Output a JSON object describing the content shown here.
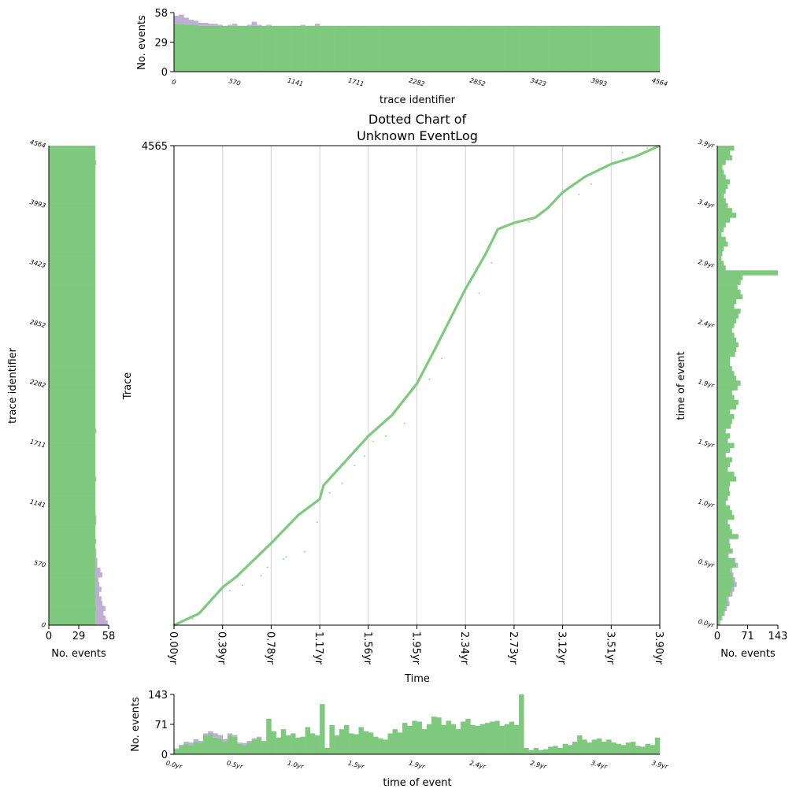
{
  "chart_data": [
    {
      "type": "scatter",
      "name": "main-dotted",
      "title": [
        "Dotted Chart of",
        "Unknown EventLog"
      ],
      "xlabel": "Time",
      "ylabel": "Trace",
      "xlim": [
        0,
        3.9
      ],
      "ylim": [
        0,
        4565
      ],
      "xticks": [
        "0.00yr",
        "0.39yr",
        "0.78yr",
        "1.17yr",
        "1.56yr",
        "1.95yr",
        "2.34yr",
        "2.73yr",
        "3.12yr",
        "3.51yr",
        "3.90yr"
      ],
      "yticks": [
        "4565"
      ],
      "grid": "vertical",
      "color": "#7fc97f",
      "curve": [
        [
          0,
          0
        ],
        [
          0.2,
          110
        ],
        [
          0.39,
          360
        ],
        [
          0.5,
          460
        ],
        [
          0.78,
          780
        ],
        [
          1.0,
          1050
        ],
        [
          1.17,
          1200
        ],
        [
          1.2,
          1330
        ],
        [
          1.56,
          1800
        ],
        [
          1.75,
          2000
        ],
        [
          1.95,
          2300
        ],
        [
          2.1,
          2640
        ],
        [
          2.34,
          3200
        ],
        [
          2.5,
          3530
        ],
        [
          2.55,
          3650
        ],
        [
          2.6,
          3770
        ],
        [
          2.73,
          3830
        ],
        [
          2.9,
          3880
        ],
        [
          3.0,
          3970
        ],
        [
          3.12,
          4120
        ],
        [
          3.3,
          4270
        ],
        [
          3.51,
          4390
        ],
        [
          3.7,
          4460
        ],
        [
          3.9,
          4565
        ]
      ],
      "outliers": [
        [
          0.15,
          60
        ],
        [
          0.2,
          120
        ],
        [
          0.25,
          180
        ],
        [
          0.3,
          250
        ],
        [
          0.45,
          330
        ],
        [
          0.55,
          380
        ],
        [
          0.7,
          470
        ],
        [
          0.75,
          550
        ],
        [
          0.88,
          630
        ],
        [
          0.9,
          650
        ],
        [
          1.05,
          700
        ],
        [
          1.15,
          980
        ],
        [
          1.25,
          1260
        ],
        [
          1.35,
          1350
        ],
        [
          1.45,
          1520
        ],
        [
          1.53,
          1610
        ],
        [
          1.6,
          1750
        ],
        [
          1.7,
          1800
        ],
        [
          1.85,
          1920
        ],
        [
          2.05,
          2340
        ],
        [
          2.15,
          2540
        ],
        [
          2.45,
          3160
        ],
        [
          2.55,
          3450
        ],
        [
          2.85,
          3840
        ],
        [
          3.25,
          4100
        ],
        [
          3.35,
          4200
        ],
        [
          3.6,
          4500
        ],
        [
          3.8,
          4540
        ]
      ]
    },
    {
      "type": "bar",
      "name": "top-histogram",
      "xlabel": "trace identifier",
      "ylabel": "No. events",
      "xlim": [
        0,
        4564
      ],
      "ylim": [
        0,
        58
      ],
      "xticks": [
        "0",
        "570",
        "1141",
        "1711",
        "2282",
        "2852",
        "3423",
        "3993",
        "4564"
      ],
      "yticks": [
        "0",
        "29",
        "58"
      ],
      "series": [
        {
          "name": "main",
          "color": "#7fc97f",
          "values": [
            47,
            47,
            46,
            46,
            46,
            45,
            45,
            45,
            45,
            45,
            45,
            45,
            45,
            45,
            45,
            45,
            45,
            45,
            45,
            45,
            45,
            45,
            45,
            45,
            45,
            45,
            45,
            45,
            45,
            45,
            45,
            45,
            45,
            45,
            45,
            45,
            45,
            45,
            45,
            45,
            45,
            45,
            45,
            45,
            45,
            45,
            45,
            45,
            45,
            45,
            45,
            45,
            45,
            45,
            45,
            45,
            45,
            45,
            45,
            45,
            45,
            45,
            45,
            45,
            45,
            45,
            45,
            45,
            45,
            45,
            45,
            45,
            45,
            45,
            45,
            45,
            45,
            45,
            45,
            45,
            45,
            45,
            45,
            45,
            45,
            45,
            45,
            45,
            45,
            45,
            45,
            45,
            45,
            45,
            45,
            45,
            45,
            45,
            45,
            45
          ]
        },
        {
          "name": "secondary",
          "color": "#beaed4",
          "values": [
            8,
            9,
            7,
            5,
            4,
            3,
            3,
            2,
            2,
            1,
            0,
            1,
            2,
            0,
            0,
            1,
            4,
            1,
            0,
            1,
            0,
            0,
            0,
            0,
            0,
            0,
            1,
            0,
            0,
            2,
            0,
            0,
            0,
            0,
            0,
            0,
            0,
            0,
            0,
            0,
            0,
            0,
            0,
            0,
            0,
            0,
            0,
            0,
            0,
            0,
            0,
            0,
            0,
            0,
            0,
            0,
            0,
            0,
            0,
            0,
            0,
            0,
            0,
            0,
            0,
            0,
            0,
            0,
            0,
            0,
            0,
            0,
            0,
            0,
            0,
            0,
            0,
            0,
            0,
            0,
            0,
            0,
            0,
            0,
            0,
            0,
            0,
            0,
            0,
            0,
            0,
            0,
            0,
            0,
            0,
            0,
            0,
            0,
            0,
            0
          ]
        }
      ]
    },
    {
      "type": "bar",
      "name": "left-histogram",
      "orientation": "horizontal",
      "xlabel": "No. events",
      "ylabel": "trace identifier",
      "xlim": [
        0,
        58
      ],
      "ylim": [
        0,
        4564
      ],
      "xticks": [
        "0",
        "29",
        "58"
      ],
      "yticks": [
        "0",
        "570",
        "1141",
        "1711",
        "2282",
        "2852",
        "3423",
        "3993",
        "4564"
      ],
      "series": [
        {
          "name": "main",
          "color": "#7fc97f",
          "values": [
            45,
            45,
            45,
            46,
            45,
            45,
            45,
            45,
            45,
            45,
            45,
            45,
            45,
            45,
            45,
            45,
            45,
            45,
            45,
            45,
            45,
            45,
            45,
            45,
            45,
            45,
            45,
            45,
            45,
            45,
            45,
            45,
            45,
            45,
            45,
            45,
            45,
            45,
            45,
            45,
            45,
            45,
            45,
            45,
            45,
            45,
            45,
            45,
            45,
            45,
            45,
            45,
            45,
            45,
            45,
            45,
            45,
            45,
            45,
            45,
            45,
            45,
            45,
            45,
            45,
            45,
            45,
            45,
            45,
            45,
            45,
            45,
            45,
            45,
            45,
            45,
            45,
            45,
            45,
            45,
            45,
            45,
            45,
            45,
            45,
            45,
            45,
            45,
            45,
            45,
            45,
            45,
            45,
            45,
            45,
            45,
            45,
            45,
            45,
            45
          ]
        },
        {
          "name": "secondary",
          "color": "#beaed4",
          "values": [
            12,
            10,
            8,
            9,
            7,
            6,
            4,
            6,
            4,
            3,
            7,
            5,
            2,
            2,
            1,
            1,
            0,
            1,
            0,
            0,
            0,
            1,
            1,
            0,
            0,
            0,
            0,
            0,
            0,
            0,
            1,
            0,
            0,
            0,
            0,
            0,
            0,
            0,
            0,
            0,
            1,
            0,
            0,
            0,
            0,
            0,
            0,
            0,
            0,
            0,
            0,
            0,
            0,
            0,
            0,
            0,
            0,
            0,
            0,
            0,
            0,
            0,
            0,
            0,
            0,
            0,
            0,
            0,
            0,
            0,
            0,
            0,
            0,
            0,
            0,
            0,
            0,
            0,
            0,
            0,
            0,
            0,
            0,
            0,
            0,
            0,
            0,
            0,
            0,
            0,
            0,
            0,
            0,
            0,
            0,
            0,
            1,
            0,
            0,
            0
          ]
        }
      ]
    },
    {
      "type": "bar",
      "name": "right-histogram",
      "orientation": "horizontal",
      "xlabel": "No. events",
      "ylabel": "time of event",
      "xlim": [
        0,
        143
      ],
      "ylim": [
        0,
        3.9
      ],
      "xticks": [
        "0",
        "71",
        "143"
      ],
      "yticks": [
        "0.0yr",
        "0.5yr",
        "1.0yr",
        "1.5yr",
        "1.9yr",
        "2.4yr",
        "2.9yr",
        "3.4yr",
        "3.9yr"
      ],
      "series": [
        {
          "name": "main",
          "color": "#7fc97f",
          "values": [
            5,
            10,
            15,
            20,
            25,
            22,
            30,
            35,
            40,
            38,
            35,
            30,
            45,
            40,
            25,
            35,
            30,
            28,
            50,
            35,
            30,
            25,
            40,
            35,
            30,
            20,
            25,
            30,
            28,
            30,
            45,
            40,
            25,
            30,
            35,
            20,
            30,
            40,
            25,
            30,
            20,
            32,
            35,
            40,
            30,
            45,
            50,
            40,
            35,
            48,
            55,
            45,
            40,
            35,
            30,
            30,
            42,
            45,
            50,
            45,
            40,
            35,
            40,
            45,
            50,
            55,
            40,
            45,
            60,
            55,
            48,
            55,
            60,
            143,
            20,
            15,
            10,
            12,
            15,
            25,
            20,
            10,
            15,
            20,
            30,
            45,
            35,
            25,
            20,
            15,
            20,
            25,
            30,
            20,
            15,
            12,
            20,
            35,
            30,
            40
          ]
        },
        {
          "name": "secondary",
          "color": "#beaed4",
          "values": [
            2,
            2,
            3,
            3,
            4,
            5,
            6,
            5,
            6,
            4,
            3,
            5,
            4,
            3,
            2,
            2,
            1,
            1,
            0,
            0,
            0,
            0,
            0,
            0,
            0,
            0,
            0,
            0,
            0,
            0,
            0,
            0,
            0,
            0,
            0,
            0,
            0,
            0,
            0,
            0,
            0,
            0,
            0,
            0,
            0,
            0,
            0,
            0,
            0,
            0,
            0,
            0,
            0,
            0,
            0,
            0,
            0,
            0,
            0,
            0,
            0,
            0,
            0,
            0,
            0,
            0,
            0,
            0,
            0,
            0,
            0,
            0,
            0,
            0,
            0,
            0,
            0,
            0,
            0,
            0,
            0,
            0,
            0,
            0,
            0,
            0,
            0,
            0,
            0,
            0,
            0,
            0,
            0,
            0,
            0,
            0,
            0,
            0,
            0,
            0
          ]
        }
      ]
    },
    {
      "type": "bar",
      "name": "bottom-histogram",
      "xlabel": "time of event",
      "ylabel": "No. events",
      "xlim": [
        0,
        3.9
      ],
      "ylim": [
        0,
        143
      ],
      "xticks": [
        "0.0yr",
        "0.5yr",
        "1.0yr",
        "1.5yr",
        "1.9yr",
        "2.4yr",
        "2.9yr",
        "3.4yr",
        "3.9yr"
      ],
      "yticks": [
        "0",
        "71",
        "143"
      ],
      "series": [
        {
          "name": "main",
          "color": "#7fc97f",
          "values": [
            12,
            20,
            25,
            22,
            30,
            28,
            45,
            48,
            40,
            38,
            30,
            45,
            42,
            25,
            22,
            28,
            35,
            40,
            30,
            85,
            55,
            40,
            60,
            45,
            50,
            40,
            42,
            65,
            50,
            45,
            120,
            15,
            70,
            45,
            60,
            70,
            50,
            48,
            65,
            55,
            52,
            42,
            38,
            35,
            50,
            60,
            52,
            75,
            68,
            80,
            78,
            60,
            72,
            90,
            88,
            70,
            80,
            72,
            60,
            78,
            85,
            70,
            68,
            72,
            75,
            78,
            80,
            68,
            72,
            78,
            70,
            143,
            15,
            10,
            15,
            10,
            12,
            18,
            20,
            15,
            25,
            22,
            30,
            45,
            35,
            28,
            35,
            38,
            30,
            35,
            28,
            25,
            22,
            28,
            30,
            20,
            18,
            25,
            22,
            40
          ]
        },
        {
          "name": "secondary",
          "color": "#beaed4",
          "values": [
            2,
            3,
            5,
            6,
            6,
            4,
            5,
            7,
            10,
            8,
            6,
            5,
            4,
            3,
            5,
            4,
            3,
            2,
            2,
            0,
            0,
            0,
            0,
            0,
            0,
            0,
            0,
            0,
            0,
            0,
            0,
            0,
            0,
            0,
            0,
            0,
            0,
            0,
            0,
            0,
            0,
            0,
            0,
            0,
            0,
            0,
            0,
            0,
            0,
            0,
            0,
            0,
            0,
            0,
            0,
            0,
            0,
            0,
            0,
            0,
            0,
            0,
            0,
            0,
            0,
            0,
            0,
            0,
            0,
            0,
            0,
            0,
            0,
            0,
            0,
            0,
            0,
            0,
            0,
            0,
            0,
            0,
            0,
            0,
            0,
            0,
            0,
            0,
            0,
            0,
            0,
            0,
            0,
            0,
            0,
            0,
            0,
            0,
            0,
            0
          ]
        }
      ]
    }
  ]
}
